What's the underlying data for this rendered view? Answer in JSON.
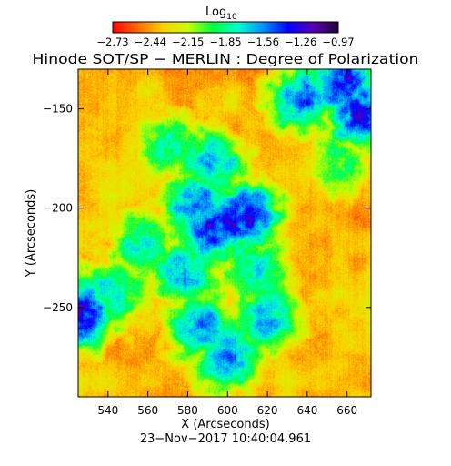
{
  "colorbar": {
    "label": "Log",
    "label_subscript": "10",
    "ticks": [
      "−2.73",
      "−2.44",
      "−2.15",
      "−1.85",
      "−1.56",
      "−1.26",
      "−0.97"
    ],
    "colors": [
      "#ff0000",
      "#ff6a00",
      "#ffd000",
      "#c8ff00",
      "#00ff40",
      "#00ffd0",
      "#0090ff",
      "#0000ff",
      "#5a00b4",
      "#1e0032"
    ]
  },
  "chart_data": {
    "type": "heatmap",
    "title": "Hinode SOT/SP − MERLIN : Degree of Polarization",
    "subtitle": "23−Nov−2017 10:40:04.961",
    "xlabel": "X (Arcseconds)",
    "ylabel": "Y (Arcseconds)",
    "xlim": [
      525,
      672
    ],
    "ylim": [
      -295,
      -130
    ],
    "x_ticks": [
      540,
      560,
      580,
      600,
      620,
      640,
      660
    ],
    "y_ticks": [
      -150,
      -200,
      -250
    ],
    "x_tick_labels": [
      "540",
      "560",
      "580",
      "600",
      "620",
      "640",
      "660"
    ],
    "y_tick_labels": [
      "−150",
      "−200",
      "−250"
    ],
    "value_scale": "log10",
    "value_range": [
      -2.73,
      -0.97
    ],
    "grid": false,
    "high_polarization_regions": [
      {
        "x": 600,
        "y": -207,
        "level": -1.3
      },
      {
        "x": 592,
        "y": -210,
        "level": -1.35
      },
      {
        "x": 609,
        "y": -204,
        "level": -1.35
      },
      {
        "x": 584,
        "y": -198,
        "level": -1.5
      },
      {
        "x": 592,
        "y": -177,
        "level": -1.6
      },
      {
        "x": 578,
        "y": -232,
        "level": -1.6
      },
      {
        "x": 587,
        "y": -260,
        "level": -1.55
      },
      {
        "x": 600,
        "y": -275,
        "level": -1.55
      },
      {
        "x": 620,
        "y": -255,
        "level": -1.6
      },
      {
        "x": 542,
        "y": -242,
        "level": -1.7
      },
      {
        "x": 557,
        "y": -218,
        "level": -1.75
      },
      {
        "x": 615,
        "y": -232,
        "level": -1.7
      },
      {
        "x": 638,
        "y": -145,
        "level": -1.5
      },
      {
        "x": 658,
        "y": -137,
        "level": -1.35
      },
      {
        "x": 667,
        "y": -152,
        "level": -1.3
      },
      {
        "x": 526,
        "y": -252,
        "level": -1.3
      },
      {
        "x": 572,
        "y": -168,
        "level": -1.8
      },
      {
        "x": 655,
        "y": -178,
        "level": -1.9
      }
    ]
  }
}
